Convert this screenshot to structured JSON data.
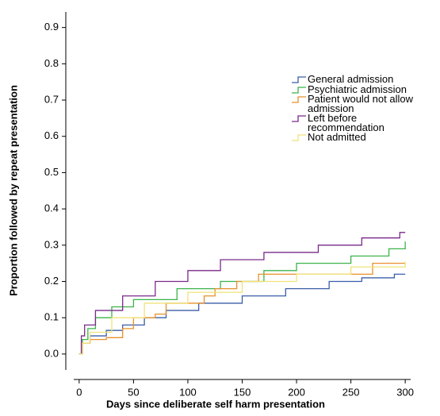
{
  "chart_data": {
    "type": "line",
    "step": true,
    "xlabel": "Days since deliberate self harm presentation",
    "ylabel": "Proportion followed by repeat presentation",
    "xlim": [
      -5,
      305
    ],
    "ylim": [
      -0.044,
      0.943
    ],
    "xticks": [
      0,
      50,
      100,
      150,
      200,
      250,
      300
    ],
    "yticks": [
      {
        "value": 0,
        "label": "0.0"
      },
      0.1,
      0.2,
      0.3,
      0.4,
      0.5,
      0.6,
      0.7,
      0.8,
      0.9
    ],
    "series": [
      {
        "name": "General admission",
        "color": "#3a5ea8",
        "x": [
          0,
          3,
          10,
          25,
          40,
          60,
          80,
          110,
          150,
          190,
          230,
          260,
          290,
          300
        ],
        "values": [
          0,
          0.03,
          0.05,
          0.065,
          0.08,
          0.1,
          0.12,
          0.14,
          0.16,
          0.18,
          0.2,
          0.21,
          0.22,
          0.22
        ]
      },
      {
        "name": "Psychiatric admission",
        "color": "#3cb34a",
        "x": [
          0,
          3,
          8,
          15,
          30,
          50,
          90,
          130,
          170,
          200,
          250,
          285,
          300
        ],
        "values": [
          0,
          0.04,
          0.07,
          0.1,
          0.13,
          0.15,
          0.18,
          0.2,
          0.23,
          0.25,
          0.27,
          0.29,
          0.31
        ]
      },
      {
        "name": "Patient would not allow admission",
        "color": "#e8902a",
        "x": [
          0,
          2,
          10,
          25,
          40,
          50,
          70,
          80,
          115,
          125,
          145,
          165,
          270,
          300
        ],
        "values": [
          0,
          0.03,
          0.04,
          0.045,
          0.07,
          0.1,
          0.11,
          0.14,
          0.16,
          0.18,
          0.2,
          0.22,
          0.25,
          0.25
        ]
      },
      {
        "name": "Left before recommendation",
        "color": "#7a2a8a",
        "x": [
          0,
          2,
          5,
          15,
          40,
          70,
          100,
          130,
          170,
          220,
          260,
          295,
          300
        ],
        "values": [
          0,
          0.05,
          0.08,
          0.12,
          0.16,
          0.2,
          0.23,
          0.26,
          0.28,
          0.3,
          0.32,
          0.335,
          0.335
        ]
      },
      {
        "name": "Not admitted",
        "color": "#f0e27a",
        "x": [
          0,
          3,
          10,
          30,
          60,
          100,
          150,
          200,
          250,
          300
        ],
        "values": [
          0,
          0.03,
          0.06,
          0.1,
          0.14,
          0.17,
          0.2,
          0.22,
          0.24,
          0.255
        ]
      }
    ]
  }
}
